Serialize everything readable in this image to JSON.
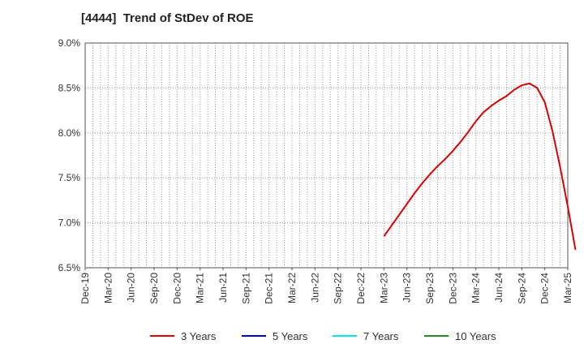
{
  "chart_data": {
    "type": "line",
    "title": "[4444]  Trend of StDev of ROE",
    "xlabel": "",
    "ylabel": "",
    "ylim": [
      6.5,
      9.0
    ],
    "y_ticks": [
      "9.0%",
      "8.5%",
      "8.0%",
      "7.5%",
      "7.0%",
      "6.5%"
    ],
    "y_tick_values": [
      9.0,
      8.5,
      8.0,
      7.5,
      7.0,
      6.5
    ],
    "x_ticks": [
      "Dec-19",
      "Mar-20",
      "Jun-20",
      "Sep-20",
      "Dec-20",
      "Mar-21",
      "Jun-21",
      "Sep-21",
      "Dec-21",
      "Mar-22",
      "Jun-22",
      "Sep-22",
      "Dec-22",
      "Mar-23",
      "Jun-23",
      "Sep-23",
      "Dec-23",
      "Mar-24",
      "Jun-24",
      "Sep-24",
      "Dec-24",
      "Mar-25"
    ],
    "x_range": [
      "2019-12",
      "2025-03"
    ],
    "grid": true,
    "legend_position": "bottom",
    "series": [
      {
        "name": "3 Years",
        "color": "#dd0000",
        "points": [
          [
            "2023-03",
            6.85
          ],
          [
            "2023-04",
            6.97
          ],
          [
            "2023-05",
            7.09
          ],
          [
            "2023-06",
            7.21
          ],
          [
            "2023-07",
            7.33
          ],
          [
            "2023-08",
            7.44
          ],
          [
            "2023-09",
            7.54
          ],
          [
            "2023-10",
            7.63
          ],
          [
            "2023-11",
            7.71
          ],
          [
            "2023-12",
            7.8
          ],
          [
            "2024-01",
            7.9
          ],
          [
            "2024-02",
            8.01
          ],
          [
            "2024-03",
            8.13
          ],
          [
            "2024-04",
            8.23
          ],
          [
            "2024-05",
            8.3
          ],
          [
            "2024-06",
            8.36
          ],
          [
            "2024-07",
            8.41
          ],
          [
            "2024-08",
            8.48
          ],
          [
            "2024-09",
            8.53
          ],
          [
            "2024-10",
            8.55
          ],
          [
            "2024-11",
            8.5
          ],
          [
            "2024-12",
            8.34
          ],
          [
            "2025-01",
            8.02
          ],
          [
            "2025-02",
            7.62
          ],
          [
            "2025-03",
            7.18
          ],
          [
            "2025-04",
            6.7
          ]
        ]
      },
      {
        "name": "5 Years",
        "color": "#0000cc",
        "points": []
      },
      {
        "name": "7 Years",
        "color": "#00e5ee",
        "points": []
      },
      {
        "name": "10 Years",
        "color": "#228b22",
        "points": []
      }
    ]
  }
}
